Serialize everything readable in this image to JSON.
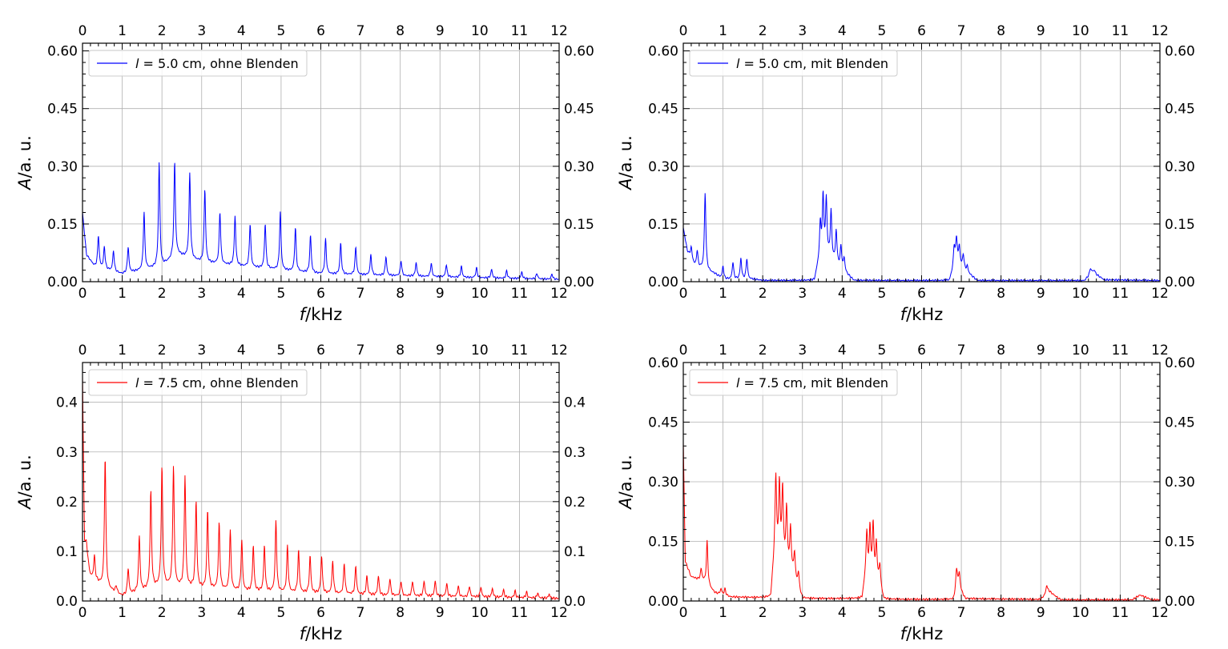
{
  "chart_data": [
    {
      "type": "line",
      "xlabel_var": "f",
      "xlabel_unit": "/kHz",
      "ylabel_var": "A",
      "ylabel_unit": "/a. u.",
      "xlim": [
        0,
        12
      ],
      "ylim": [
        0,
        0.62
      ],
      "xticks": [
        "0",
        "1",
        "2",
        "3",
        "4",
        "5",
        "6",
        "7",
        "8",
        "9",
        "10",
        "11",
        "12"
      ],
      "yticks": [
        0.0,
        0.15,
        0.3,
        0.45,
        0.6
      ],
      "ytick_labels": [
        "0.00",
        "0.15",
        "0.30",
        "0.45",
        "0.60"
      ],
      "grid": true,
      "legend_position": "top-left",
      "color": "#0000ff",
      "series": [
        {
          "name_var": "l",
          "name_rest": " = 5.0 cm, ohne Blenden",
          "baseline": [
            [
              0,
              0.18
            ],
            [
              0.1,
              0.07
            ],
            [
              0.3,
              0.04
            ],
            [
              1.0,
              0.02
            ],
            [
              1.5,
              0.03
            ],
            [
              2.0,
              0.04
            ],
            [
              2.4,
              0.07
            ],
            [
              3.0,
              0.05
            ],
            [
              4.0,
              0.04
            ],
            [
              5.0,
              0.03
            ],
            [
              6.0,
              0.02
            ],
            [
              8.0,
              0.015
            ],
            [
              10.0,
              0.01
            ],
            [
              12.0,
              0.006
            ]
          ],
          "peaks": [
            [
              0.4,
              0.12
            ],
            [
              0.55,
              0.09
            ],
            [
              0.78,
              0.08
            ],
            [
              1.15,
              0.09
            ],
            [
              1.55,
              0.18
            ],
            [
              1.93,
              0.31
            ],
            [
              2.32,
              0.31
            ],
            [
              2.7,
              0.28
            ],
            [
              3.08,
              0.24
            ],
            [
              3.46,
              0.18
            ],
            [
              3.84,
              0.17
            ],
            [
              4.22,
              0.15
            ],
            [
              4.6,
              0.15
            ],
            [
              4.98,
              0.18
            ],
            [
              5.36,
              0.14
            ],
            [
              5.74,
              0.12
            ],
            [
              6.12,
              0.11
            ],
            [
              6.5,
              0.1
            ],
            [
              6.88,
              0.09
            ],
            [
              7.26,
              0.07
            ],
            [
              7.64,
              0.065
            ],
            [
              8.02,
              0.055
            ],
            [
              8.4,
              0.05
            ],
            [
              8.78,
              0.048
            ],
            [
              9.16,
              0.044
            ],
            [
              9.54,
              0.04
            ],
            [
              9.92,
              0.036
            ],
            [
              10.3,
              0.032
            ],
            [
              10.68,
              0.028
            ],
            [
              11.06,
              0.025
            ],
            [
              11.44,
              0.022
            ],
            [
              11.82,
              0.02
            ]
          ]
        }
      ]
    },
    {
      "type": "line",
      "xlabel_var": "f",
      "xlabel_unit": "/kHz",
      "ylabel_var": "A",
      "ylabel_unit": "/a. u.",
      "xlim": [
        0,
        12
      ],
      "ylim": [
        0,
        0.62
      ],
      "xticks": [
        "0",
        "1",
        "2",
        "3",
        "4",
        "5",
        "6",
        "7",
        "8",
        "9",
        "10",
        "11",
        "12"
      ],
      "yticks": [
        0.0,
        0.15,
        0.3,
        0.45,
        0.6
      ],
      "ytick_labels": [
        "0.00",
        "0.15",
        "0.30",
        "0.45",
        "0.60"
      ],
      "grid": true,
      "legend_position": "top-left",
      "color": "#0000ff",
      "series": [
        {
          "name_var": "l",
          "name_rest": " = 5.0 cm, mit Blenden",
          "baseline": [
            [
              0,
              0.14
            ],
            [
              0.1,
              0.08
            ],
            [
              0.3,
              0.04
            ],
            [
              0.8,
              0.02
            ],
            [
              1.0,
              0.006
            ],
            [
              1.8,
              0.006
            ],
            [
              2.0,
              0.003
            ],
            [
              3.3,
              0.003
            ],
            [
              3.45,
              0.07
            ],
            [
              3.7,
              0.06
            ],
            [
              4.0,
              0.03
            ],
            [
              4.3,
              0.003
            ],
            [
              6.7,
              0.003
            ],
            [
              6.85,
              0.05
            ],
            [
              7.2,
              0.02
            ],
            [
              7.4,
              0.003
            ],
            [
              10.1,
              0.003
            ],
            [
              10.3,
              0.025
            ],
            [
              10.6,
              0.005
            ],
            [
              12.0,
              0.003
            ]
          ],
          "peaks": [
            [
              0.2,
              0.09
            ],
            [
              0.35,
              0.08
            ],
            [
              0.55,
              0.23
            ],
            [
              1.0,
              0.04
            ],
            [
              1.25,
              0.05
            ],
            [
              1.45,
              0.06
            ],
            [
              1.6,
              0.06
            ],
            [
              3.45,
              0.15
            ],
            [
              3.52,
              0.22
            ],
            [
              3.6,
              0.21
            ],
            [
              3.72,
              0.18
            ],
            [
              3.85,
              0.13
            ],
            [
              3.97,
              0.09
            ],
            [
              4.05,
              0.06
            ],
            [
              6.82,
              0.09
            ],
            [
              6.88,
              0.11
            ],
            [
              6.95,
              0.09
            ],
            [
              7.05,
              0.07
            ],
            [
              7.15,
              0.04
            ],
            [
              10.25,
              0.035
            ],
            [
              10.35,
              0.03
            ]
          ]
        }
      ]
    },
    {
      "type": "line",
      "xlabel_var": "f",
      "xlabel_unit": "/kHz",
      "ylabel_var": "A",
      "ylabel_unit": "/a. u.",
      "xlim": [
        0,
        12
      ],
      "ylim": [
        0,
        0.48
      ],
      "xticks": [
        "0",
        "1",
        "2",
        "3",
        "4",
        "5",
        "6",
        "7",
        "8",
        "9",
        "10",
        "11",
        "12"
      ],
      "yticks": [
        0.0,
        0.1,
        0.2,
        0.3,
        0.4
      ],
      "ytick_labels": [
        "0.0",
        "0.1",
        "0.2",
        "0.3",
        "0.4"
      ],
      "grid": true,
      "legend_position": "top-left",
      "color": "#ff0000",
      "series": [
        {
          "name_var": "l",
          "name_rest": " = 7.5 cm, ohne Blenden",
          "baseline": [
            [
              0,
              0.45
            ],
            [
              0.05,
              0.12
            ],
            [
              0.2,
              0.05
            ],
            [
              0.5,
              0.03
            ],
            [
              1.0,
              0.01
            ],
            [
              1.5,
              0.02
            ],
            [
              2.0,
              0.03
            ],
            [
              3.0,
              0.025
            ],
            [
              4.0,
              0.02
            ],
            [
              6.0,
              0.015
            ],
            [
              8.0,
              0.01
            ],
            [
              10.0,
              0.008
            ],
            [
              12.0,
              0.005
            ]
          ],
          "peaks": [
            [
              0.1,
              0.12
            ],
            [
              0.3,
              0.09
            ],
            [
              0.57,
              0.29
            ],
            [
              0.85,
              0.03
            ],
            [
              1.15,
              0.065
            ],
            [
              1.43,
              0.13
            ],
            [
              1.72,
              0.22
            ],
            [
              2.0,
              0.27
            ],
            [
              2.29,
              0.27
            ],
            [
              2.58,
              0.25
            ],
            [
              2.86,
              0.2
            ],
            [
              3.15,
              0.18
            ],
            [
              3.44,
              0.155
            ],
            [
              3.72,
              0.14
            ],
            [
              4.01,
              0.12
            ],
            [
              4.3,
              0.11
            ],
            [
              4.58,
              0.11
            ],
            [
              4.87,
              0.16
            ],
            [
              5.16,
              0.11
            ],
            [
              5.44,
              0.1
            ],
            [
              5.73,
              0.09
            ],
            [
              6.02,
              0.09
            ],
            [
              6.3,
              0.08
            ],
            [
              6.59,
              0.075
            ],
            [
              6.88,
              0.07
            ],
            [
              7.16,
              0.05
            ],
            [
              7.45,
              0.05
            ],
            [
              7.74,
              0.045
            ],
            [
              8.02,
              0.04
            ],
            [
              8.31,
              0.04
            ],
            [
              8.6,
              0.04
            ],
            [
              8.88,
              0.04
            ],
            [
              9.17,
              0.035
            ],
            [
              9.46,
              0.03
            ],
            [
              9.74,
              0.03
            ],
            [
              10.03,
              0.028
            ],
            [
              10.32,
              0.025
            ],
            [
              10.6,
              0.022
            ],
            [
              10.89,
              0.02
            ],
            [
              11.18,
              0.018
            ],
            [
              11.46,
              0.016
            ],
            [
              11.75,
              0.014
            ]
          ]
        }
      ]
    },
    {
      "type": "line",
      "xlabel_var": "f",
      "xlabel_unit": "/kHz",
      "ylabel_var": "A",
      "ylabel_unit": "/a. u.",
      "xlim": [
        0,
        12
      ],
      "ylim": [
        0,
        0.6
      ],
      "xticks": [
        "0",
        "1",
        "2",
        "3",
        "4",
        "5",
        "6",
        "7",
        "8",
        "9",
        "10",
        "11",
        "12"
      ],
      "yticks": [
        0.0,
        0.15,
        0.3,
        0.45,
        0.6
      ],
      "ytick_labels": [
        "0.00",
        "0.15",
        "0.30",
        "0.45",
        "0.60"
      ],
      "grid": true,
      "legend_position": "top-left",
      "color": "#ff0000",
      "series": [
        {
          "name_var": "l",
          "name_rest": " = 7.5 cm, mit Blenden",
          "baseline": [
            [
              0,
              0.4
            ],
            [
              0.05,
              0.1
            ],
            [
              0.2,
              0.06
            ],
            [
              0.5,
              0.05
            ],
            [
              0.8,
              0.02
            ],
            [
              1.2,
              0.01
            ],
            [
              2.0,
              0.008
            ],
            [
              2.2,
              0.008
            ],
            [
              2.3,
              0.12
            ],
            [
              2.7,
              0.08
            ],
            [
              3.0,
              0.006
            ],
            [
              4.5,
              0.006
            ],
            [
              4.6,
              0.07
            ],
            [
              4.9,
              0.05
            ],
            [
              5.05,
              0.004
            ],
            [
              6.8,
              0.004
            ],
            [
              6.9,
              0.04
            ],
            [
              7.1,
              0.006
            ],
            [
              9.0,
              0.004
            ],
            [
              9.2,
              0.025
            ],
            [
              9.5,
              0.003
            ],
            [
              11.3,
              0.003
            ],
            [
              11.5,
              0.015
            ],
            [
              11.8,
              0.003
            ],
            [
              12.0,
              0.003
            ]
          ],
          "peaks": [
            [
              0.1,
              0.08
            ],
            [
              0.25,
              0.06
            ],
            [
              0.45,
              0.08
            ],
            [
              0.6,
              0.15
            ],
            [
              0.95,
              0.03
            ],
            [
              1.05,
              0.03
            ],
            [
              2.33,
              0.31
            ],
            [
              2.42,
              0.29
            ],
            [
              2.5,
              0.28
            ],
            [
              2.6,
              0.23
            ],
            [
              2.7,
              0.18
            ],
            [
              2.8,
              0.12
            ],
            [
              2.9,
              0.07
            ],
            [
              4.62,
              0.17
            ],
            [
              4.7,
              0.18
            ],
            [
              4.78,
              0.19
            ],
            [
              4.86,
              0.14
            ],
            [
              4.95,
              0.09
            ],
            [
              6.88,
              0.08
            ],
            [
              6.95,
              0.07
            ],
            [
              9.15,
              0.04
            ]
          ]
        }
      ]
    }
  ]
}
